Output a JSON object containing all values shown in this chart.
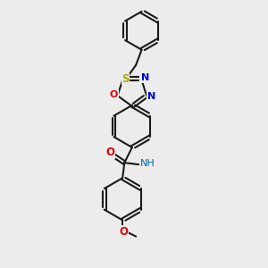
{
  "bg": "#ececec",
  "lc": "#1a1a1a",
  "S_color": "#aaaa00",
  "O_color": "#dd0000",
  "N_color": "#0000cc",
  "NH_color": "#0066aa",
  "lw": 1.5,
  "figsize": [
    3.0,
    3.0
  ],
  "dpi": 100,
  "xlim": [
    60,
    220
  ],
  "ylim": [
    10,
    290
  ]
}
